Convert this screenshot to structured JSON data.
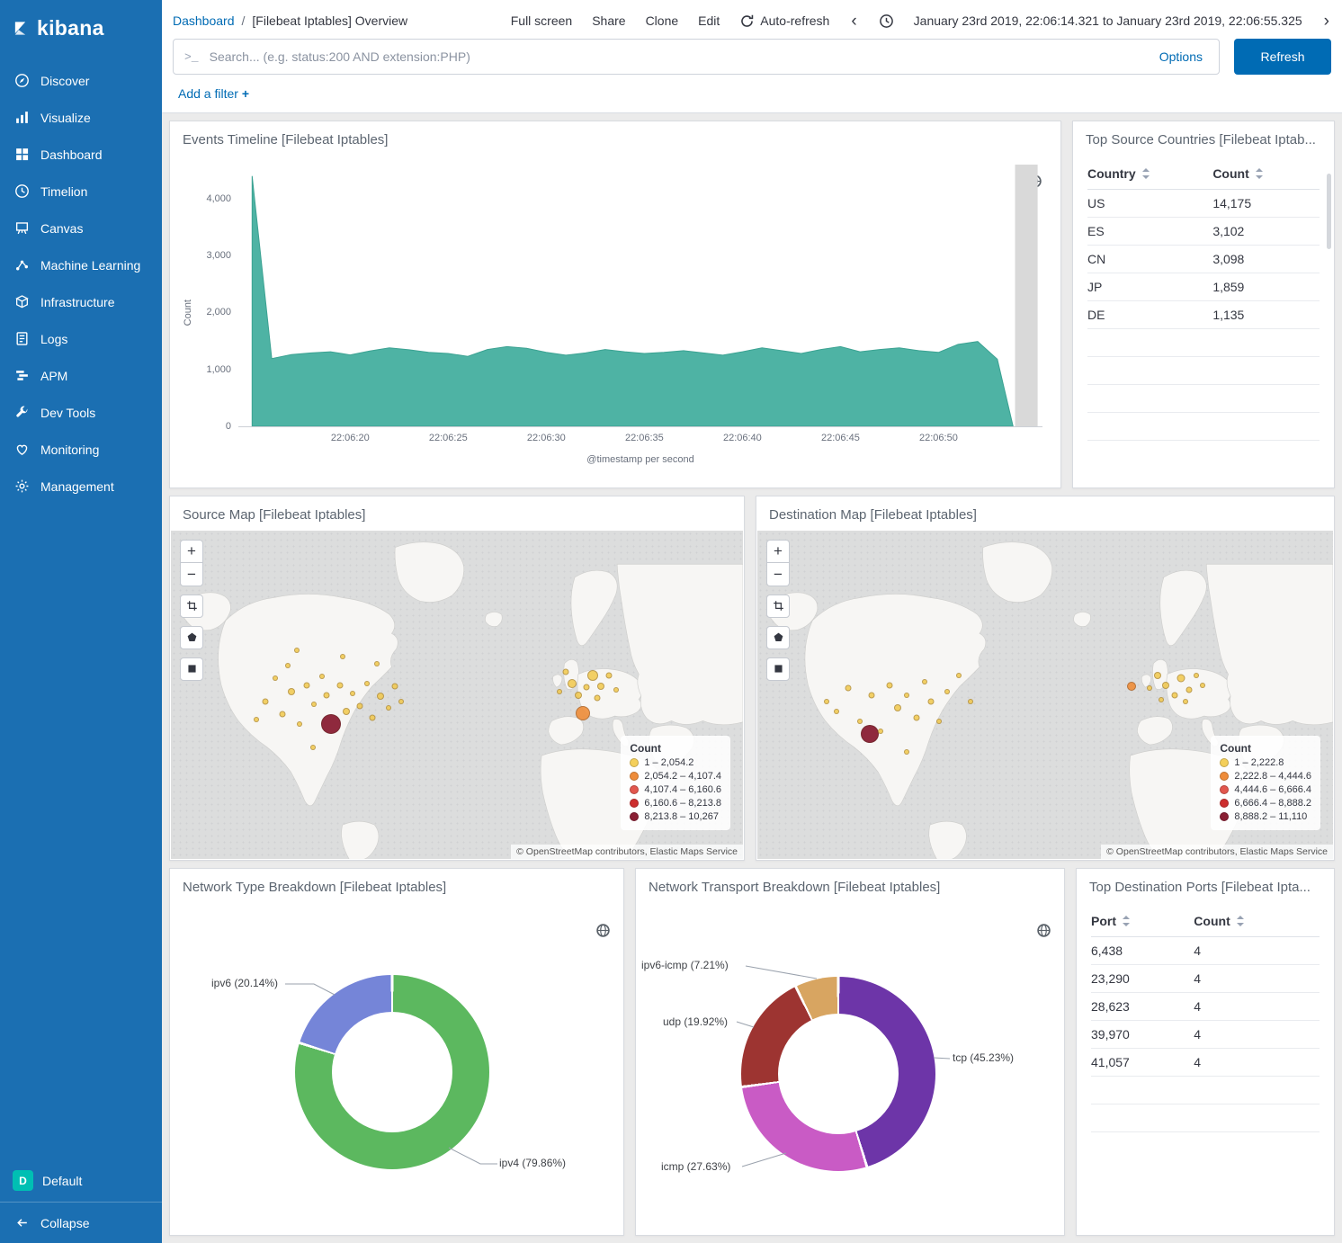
{
  "sidebar": {
    "logo_text": "kibana",
    "items": [
      {
        "label": "Discover"
      },
      {
        "label": "Visualize"
      },
      {
        "label": "Dashboard"
      },
      {
        "label": "Timelion"
      },
      {
        "label": "Canvas"
      },
      {
        "label": "Machine Learning"
      },
      {
        "label": "Infrastructure"
      },
      {
        "label": "Logs"
      },
      {
        "label": "APM"
      },
      {
        "label": "Dev Tools"
      },
      {
        "label": "Monitoring"
      },
      {
        "label": "Management"
      }
    ],
    "space_badge": "D",
    "space_label": "Default",
    "collapse_label": "Collapse"
  },
  "header": {
    "breadcrumb_root": "Dashboard",
    "breadcrumb_sep": "/",
    "title": "[Filebeat Iptables] Overview",
    "menu": [
      "Full screen",
      "Share",
      "Clone",
      "Edit"
    ],
    "auto_refresh_label": "Auto-refresh",
    "prev_chevron": "‹",
    "next_chevron": "›",
    "time_range": "January 23rd 2019, 22:06:14.321 to January 23rd 2019, 22:06:55.325"
  },
  "search": {
    "prompt": ">_",
    "placeholder": "Search... (e.g. status:200 AND extension:PHP)",
    "options_label": "Options",
    "refresh_label": "Refresh"
  },
  "filter_bar": {
    "add_filter_label": "Add a filter",
    "plus": "+"
  },
  "map_controls": {
    "zoom_in": "+",
    "zoom_out": "−"
  },
  "panels": {
    "events_timeline": {
      "title": "Events Timeline [Filebeat Iptables]",
      "chart_data": {
        "type": "area",
        "color": "#4eb3a4",
        "stroke": "#3ba292",
        "ylabel": "Count",
        "xlabel": "@timestamp per second",
        "y_ticks": [
          "0",
          "1,000",
          "2,000",
          "3,000",
          "4,000"
        ],
        "y_tick_values": [
          0,
          1000,
          2000,
          3000,
          4000
        ],
        "ylim": [
          0,
          4600
        ],
        "x_domain_seconds": [
          14.3,
          55.3
        ],
        "x_ticks": [
          {
            "label": "22:06:20",
            "t": 20
          },
          {
            "label": "22:06:25",
            "t": 25
          },
          {
            "label": "22:06:30",
            "t": 30
          },
          {
            "label": "22:06:35",
            "t": 35
          },
          {
            "label": "22:06:40",
            "t": 40
          },
          {
            "label": "22:06:45",
            "t": 45
          },
          {
            "label": "22:06:50",
            "t": 50
          }
        ],
        "t": [
          15,
          16,
          17,
          18,
          19,
          20,
          21,
          22,
          23,
          24,
          25,
          26,
          27,
          28,
          29,
          30,
          31,
          32,
          33,
          34,
          35,
          36,
          37,
          38,
          39,
          40,
          41,
          42,
          43,
          44,
          45,
          46,
          47,
          48,
          49,
          50,
          51,
          52,
          53,
          53.8
        ],
        "y": [
          4400,
          1190,
          1260,
          1290,
          1310,
          1255,
          1325,
          1380,
          1345,
          1300,
          1280,
          1230,
          1350,
          1400,
          1370,
          1300,
          1250,
          1290,
          1350,
          1310,
          1280,
          1300,
          1330,
          1290,
          1250,
          1310,
          1380,
          1330,
          1280,
          1350,
          1400,
          1310,
          1350,
          1380,
          1330,
          1300,
          1440,
          1490,
          1180,
          0
        ],
        "partial_bucket": {
          "from": 53.9,
          "to": 55.05,
          "color": "#d9d9d9"
        }
      }
    },
    "top_source_countries": {
      "title": "Top Source Countries [Filebeat Iptab...",
      "columns": [
        "Country",
        "Count"
      ],
      "rows": [
        [
          "US",
          "14,175"
        ],
        [
          "ES",
          "3,102"
        ],
        [
          "CN",
          "3,098"
        ],
        [
          "JP",
          "1,859"
        ],
        [
          "DE",
          "1,135"
        ]
      ]
    },
    "source_map": {
      "title": "Source Map [Filebeat Iptables]",
      "legend_title": "Count",
      "legend": [
        {
          "color": "#f4cf5a",
          "label": "1 – 2,054.2"
        },
        {
          "color": "#ee8c3a",
          "label": "2,054.2 – 4,107.4"
        },
        {
          "color": "#e2574e",
          "label": "4,107.4 – 6,160.6"
        },
        {
          "color": "#cd2d2d",
          "label": "6,160.6 – 8,213.8"
        },
        {
          "color": "#8a1f34",
          "label": "8,213.8 – 10,267"
        }
      ],
      "attribution": "© OpenStreetMap contributors, Elastic Maps Service",
      "markers": [
        {
          "x": 28.0,
          "y": 59.0,
          "r": 11,
          "color": "#8a1f34",
          "o": 0.95
        },
        {
          "x": 72.0,
          "y": 55.5,
          "r": 8,
          "color": "#ef8e3a",
          "o": 0.9
        },
        {
          "x": 73.8,
          "y": 44.0,
          "r": 6,
          "color": "#f2c94c",
          "o": 0.85
        },
        {
          "x": 70.2,
          "y": 46.5,
          "r": 5,
          "color": "#f2c94c",
          "o": 0.85
        },
        {
          "x": 75.2,
          "y": 47.5,
          "r": 4,
          "color": "#f2c94c",
          "o": 0.85
        },
        {
          "x": 71.2,
          "y": 50.0,
          "r": 4,
          "color": "#f2c94c",
          "o": 0.85
        },
        {
          "x": 76.5,
          "y": 44.0,
          "r": 3.5,
          "color": "#f2c94c",
          "o": 0.85
        },
        {
          "x": 69.0,
          "y": 43.0,
          "r": 3.5,
          "color": "#f2c94c",
          "o": 0.85
        },
        {
          "x": 72.6,
          "y": 47.8,
          "r": 3.5,
          "color": "#f2c94c",
          "o": 0.85
        },
        {
          "x": 74.6,
          "y": 51.0,
          "r": 3.5,
          "color": "#f2c94c",
          "o": 0.85
        },
        {
          "x": 77.8,
          "y": 48.5,
          "r": 3,
          "color": "#f2c94c",
          "o": 0.85
        },
        {
          "x": 68.0,
          "y": 49.0,
          "r": 3,
          "color": "#f2c94c",
          "o": 0.85
        },
        {
          "x": 16.5,
          "y": 52.0,
          "r": 3.5,
          "color": "#f2c94c",
          "o": 0.85
        },
        {
          "x": 18.2,
          "y": 45.0,
          "r": 3,
          "color": "#f2c94c",
          "o": 0.85
        },
        {
          "x": 19.5,
          "y": 56.0,
          "r": 3.5,
          "color": "#f2c94c",
          "o": 0.85
        },
        {
          "x": 21.0,
          "y": 49.0,
          "r": 4,
          "color": "#f2c94c",
          "o": 0.85
        },
        {
          "x": 22.5,
          "y": 59.0,
          "r": 3,
          "color": "#f2c94c",
          "o": 0.85
        },
        {
          "x": 23.8,
          "y": 47.0,
          "r": 3.5,
          "color": "#f2c94c",
          "o": 0.85
        },
        {
          "x": 25.0,
          "y": 53.0,
          "r": 3,
          "color": "#f2c94c",
          "o": 0.85
        },
        {
          "x": 26.4,
          "y": 44.5,
          "r": 3,
          "color": "#f2c94c",
          "o": 0.85
        },
        {
          "x": 27.2,
          "y": 50.0,
          "r": 3.5,
          "color": "#f2c94c",
          "o": 0.85
        },
        {
          "x": 29.6,
          "y": 47.0,
          "r": 3.5,
          "color": "#f2c94c",
          "o": 0.85
        },
        {
          "x": 30.6,
          "y": 55.0,
          "r": 4,
          "color": "#f2c94c",
          "o": 0.85
        },
        {
          "x": 31.8,
          "y": 49.5,
          "r": 3,
          "color": "#f2c94c",
          "o": 0.85
        },
        {
          "x": 33.0,
          "y": 53.5,
          "r": 3.5,
          "color": "#f2c94c",
          "o": 0.85
        },
        {
          "x": 34.2,
          "y": 46.5,
          "r": 3,
          "color": "#f2c94c",
          "o": 0.85
        },
        {
          "x": 35.2,
          "y": 57.0,
          "r": 3.5,
          "color": "#f2c94c",
          "o": 0.85
        },
        {
          "x": 36.6,
          "y": 50.5,
          "r": 4,
          "color": "#f2c94c",
          "o": 0.85
        },
        {
          "x": 38.0,
          "y": 54.0,
          "r": 3,
          "color": "#f2c94c",
          "o": 0.85
        },
        {
          "x": 39.2,
          "y": 47.5,
          "r": 3.5,
          "color": "#f2c94c",
          "o": 0.85
        },
        {
          "x": 40.2,
          "y": 52.0,
          "r": 3,
          "color": "#f2c94c",
          "o": 0.85
        },
        {
          "x": 24.8,
          "y": 66.0,
          "r": 3,
          "color": "#f2c94c",
          "o": 0.85
        },
        {
          "x": 20.4,
          "y": 41.0,
          "r": 3,
          "color": "#f2c94c",
          "o": 0.85
        },
        {
          "x": 15.0,
          "y": 57.5,
          "r": 3,
          "color": "#f2c94c",
          "o": 0.85
        },
        {
          "x": 22.0,
          "y": 36.5,
          "r": 3,
          "color": "#f2c94c",
          "o": 0.85
        },
        {
          "x": 30.0,
          "y": 38.5,
          "r": 3,
          "color": "#f2c94c",
          "o": 0.85
        },
        {
          "x": 36.0,
          "y": 40.5,
          "r": 3,
          "color": "#f2c94c",
          "o": 0.85
        }
      ]
    },
    "destination_map": {
      "title": "Destination Map [Filebeat Iptables]",
      "legend_title": "Count",
      "legend": [
        {
          "color": "#f4cf5a",
          "label": "1 – 2,222.8"
        },
        {
          "color": "#ee8c3a",
          "label": "2,222.8 – 4,444.6"
        },
        {
          "color": "#e2574e",
          "label": "4,444.6 – 6,666.4"
        },
        {
          "color": "#cd2d2d",
          "label": "6,666.4 – 8,888.2"
        },
        {
          "color": "#8a1f34",
          "label": "8,888.2 – 11,110"
        }
      ],
      "attribution": "© OpenStreetMap contributors, Elastic Maps Service",
      "markers": [
        {
          "x": 19.5,
          "y": 62.0,
          "r": 10,
          "color": "#8a1f34",
          "o": 0.95
        },
        {
          "x": 65.0,
          "y": 47.5,
          "r": 5,
          "color": "#ef8e3a",
          "o": 0.9
        },
        {
          "x": 69.5,
          "y": 44.0,
          "r": 4,
          "color": "#f2c94c",
          "o": 0.85
        },
        {
          "x": 71.0,
          "y": 47.0,
          "r": 4,
          "color": "#f2c94c",
          "o": 0.85
        },
        {
          "x": 72.5,
          "y": 50.0,
          "r": 3.5,
          "color": "#f2c94c",
          "o": 0.85
        },
        {
          "x": 73.6,
          "y": 45.0,
          "r": 4.5,
          "color": "#f2c94c",
          "o": 0.85
        },
        {
          "x": 75.0,
          "y": 48.5,
          "r": 3.5,
          "color": "#f2c94c",
          "o": 0.85
        },
        {
          "x": 76.2,
          "y": 44.0,
          "r": 3,
          "color": "#f2c94c",
          "o": 0.85
        },
        {
          "x": 70.2,
          "y": 51.5,
          "r": 3,
          "color": "#f2c94c",
          "o": 0.85
        },
        {
          "x": 68.2,
          "y": 48.0,
          "r": 3,
          "color": "#f2c94c",
          "o": 0.85
        },
        {
          "x": 74.4,
          "y": 52.0,
          "r": 3,
          "color": "#f2c94c",
          "o": 0.85
        },
        {
          "x": 77.4,
          "y": 47.0,
          "r": 3,
          "color": "#f2c94c",
          "o": 0.85
        },
        {
          "x": 13.8,
          "y": 55.0,
          "r": 3,
          "color": "#f2c94c",
          "o": 0.85
        },
        {
          "x": 15.8,
          "y": 48.0,
          "r": 3.5,
          "color": "#f2c94c",
          "o": 0.85
        },
        {
          "x": 17.8,
          "y": 58.0,
          "r": 3,
          "color": "#f2c94c",
          "o": 0.85
        },
        {
          "x": 19.8,
          "y": 50.0,
          "r": 3.5,
          "color": "#f2c94c",
          "o": 0.85
        },
        {
          "x": 21.4,
          "y": 61.0,
          "r": 3,
          "color": "#f2c94c",
          "o": 0.85
        },
        {
          "x": 23.0,
          "y": 47.0,
          "r": 3.5,
          "color": "#f2c94c",
          "o": 0.85
        },
        {
          "x": 24.4,
          "y": 54.0,
          "r": 4,
          "color": "#f2c94c",
          "o": 0.85
        },
        {
          "x": 26.0,
          "y": 50.0,
          "r": 3,
          "color": "#f2c94c",
          "o": 0.85
        },
        {
          "x": 27.6,
          "y": 57.0,
          "r": 3.5,
          "color": "#f2c94c",
          "o": 0.85
        },
        {
          "x": 29.0,
          "y": 46.0,
          "r": 3,
          "color": "#f2c94c",
          "o": 0.85
        },
        {
          "x": 30.2,
          "y": 52.0,
          "r": 3.5,
          "color": "#f2c94c",
          "o": 0.85
        },
        {
          "x": 31.6,
          "y": 58.0,
          "r": 3,
          "color": "#f2c94c",
          "o": 0.85
        },
        {
          "x": 33.0,
          "y": 49.0,
          "r": 3,
          "color": "#f2c94c",
          "o": 0.85
        },
        {
          "x": 26.0,
          "y": 67.5,
          "r": 3,
          "color": "#f2c94c",
          "o": 0.85
        },
        {
          "x": 12.0,
          "y": 52.0,
          "r": 3,
          "color": "#f2c94c",
          "o": 0.85
        },
        {
          "x": 35.0,
          "y": 44.0,
          "r": 3,
          "color": "#f2c94c",
          "o": 0.85
        },
        {
          "x": 37.0,
          "y": 52.0,
          "r": 3,
          "color": "#f2c94c",
          "o": 0.85
        }
      ]
    },
    "network_type": {
      "title": "Network Type Breakdown [Filebeat Iptables]",
      "chart_data": {
        "type": "pie",
        "donut": true,
        "slices": [
          {
            "label": "ipv4",
            "pct": 79.86,
            "color": "#5cb85f",
            "display": "ipv4 (79.86%)"
          },
          {
            "label": "ipv6",
            "pct": 20.14,
            "color": "#7585d8",
            "display": "ipv6 (20.14%)"
          }
        ]
      }
    },
    "network_transport": {
      "title": "Network Transport Breakdown [Filebeat Iptables]",
      "chart_data": {
        "type": "pie",
        "donut": true,
        "slices": [
          {
            "label": "tcp",
            "pct": 45.23,
            "color": "#6d35a8",
            "display": "tcp (45.23%)"
          },
          {
            "label": "icmp",
            "pct": 27.63,
            "color": "#c95bc5",
            "display": "icmp (27.63%)"
          },
          {
            "label": "udp",
            "pct": 19.92,
            "color": "#9d3431",
            "display": "udp (19.92%)"
          },
          {
            "label": "ipv6-icmp",
            "pct": 7.21,
            "color": "#d8a561",
            "display": "ipv6-icmp (7.21%)"
          }
        ]
      }
    },
    "top_destination_ports": {
      "title": "Top Destination Ports [Filebeat Ipta...",
      "columns": [
        "Port",
        "Count"
      ],
      "rows": [
        [
          "6,438",
          "4"
        ],
        [
          "23,290",
          "4"
        ],
        [
          "28,623",
          "4"
        ],
        [
          "39,970",
          "4"
        ],
        [
          "41,057",
          "4"
        ]
      ]
    }
  }
}
